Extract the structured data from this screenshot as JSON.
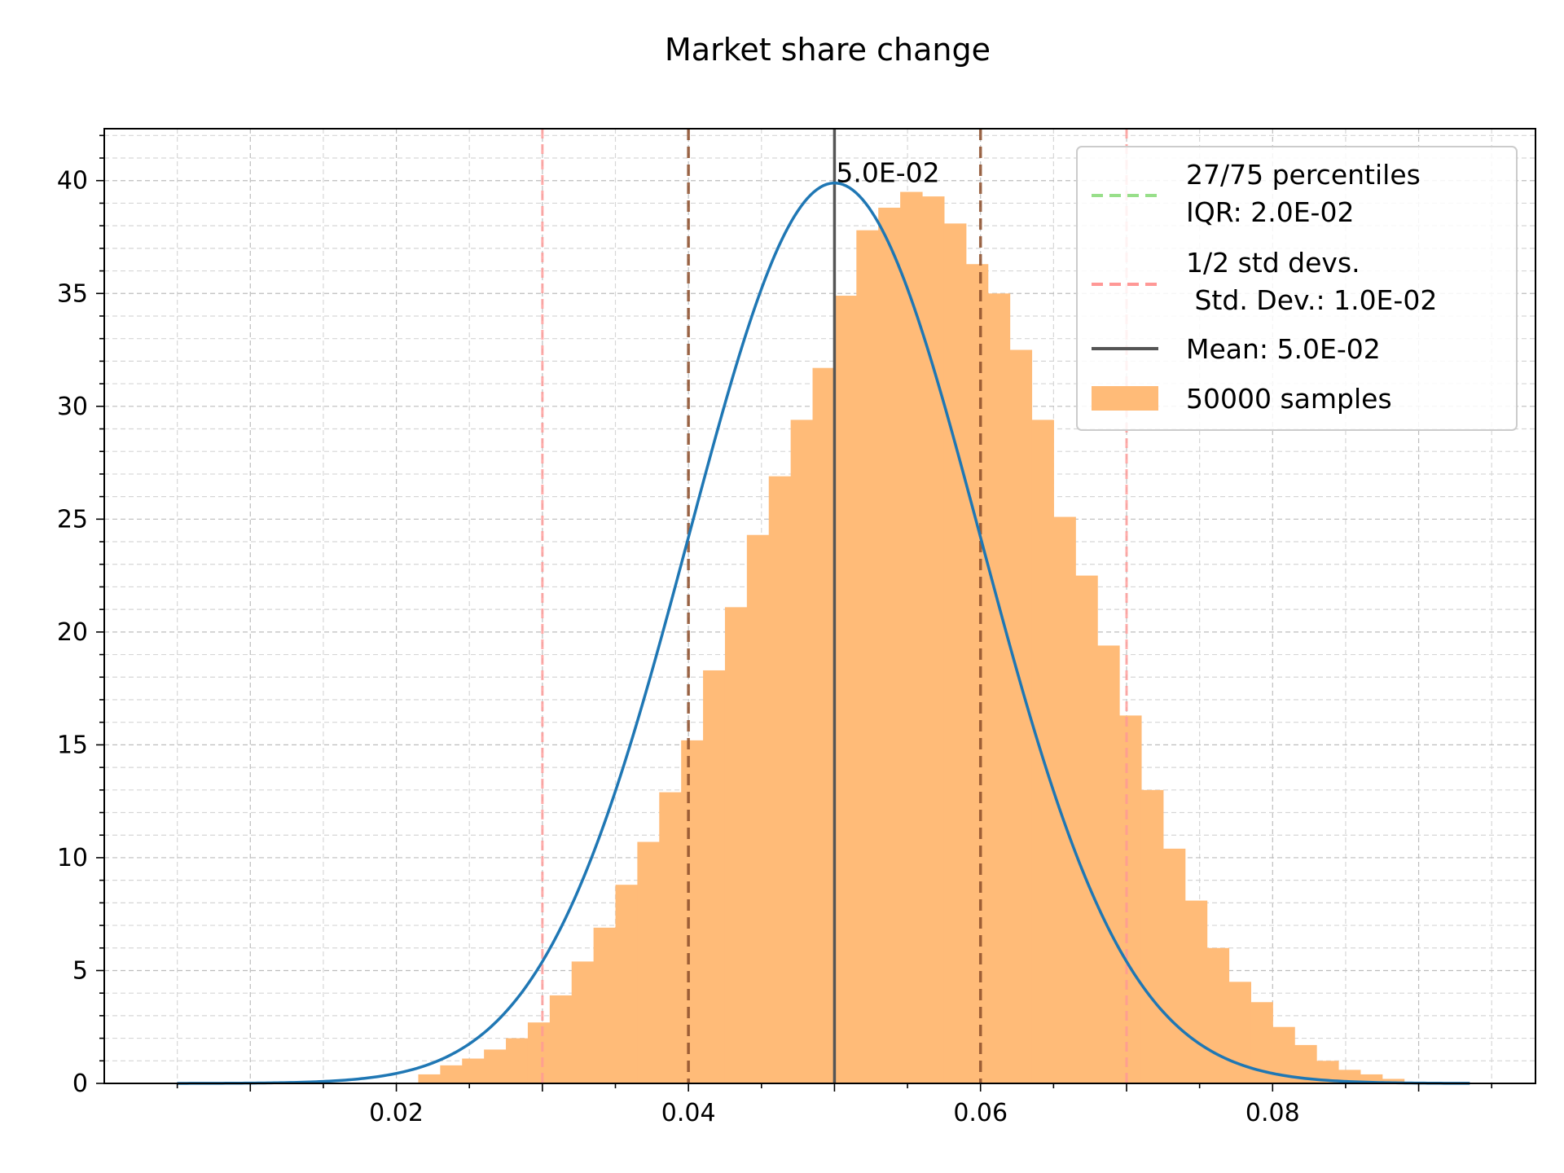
{
  "chart_data": {
    "type": "bar",
    "title": "Market share change",
    "xlabel": "",
    "ylabel": "",
    "xlim": [
      0.0,
      0.098
    ],
    "ylim": [
      0,
      42.3
    ],
    "xticks": [
      0.02,
      0.04,
      0.06,
      0.08
    ],
    "xtick_labels": [
      "0.02",
      "0.04",
      "0.06",
      "0.08"
    ],
    "yticks": [
      0,
      5,
      10,
      15,
      20,
      25,
      30,
      35,
      40
    ],
    "ytick_labels": [
      "0",
      "5",
      "10",
      "15",
      "20",
      "25",
      "30",
      "35",
      "40"
    ],
    "grid": true,
    "legend_position": "upper right",
    "histogram": {
      "name": "50000 samples",
      "color": "#ffbb78",
      "bin_width": 0.0015,
      "bins_start": 0.0215,
      "values": [
        0.4,
        0.8,
        1.1,
        1.5,
        2.0,
        2.7,
        3.9,
        5.4,
        6.9,
        8.8,
        10.7,
        12.9,
        15.2,
        18.3,
        21.1,
        24.3,
        26.9,
        29.4,
        31.7,
        34.9,
        37.8,
        38.8,
        39.5,
        39.3,
        38.1,
        36.3,
        35.0,
        32.5,
        29.4,
        25.1,
        22.5,
        19.4,
        16.3,
        13.0,
        10.4,
        8.1,
        6.0,
        4.5,
        3.6,
        2.5,
        1.7,
        1.0,
        0.6,
        0.4,
        0.2
      ]
    },
    "pdf_curve": {
      "name": "pdf",
      "color": "#1f77b4",
      "mean": 0.05,
      "std": 0.01,
      "x_range": [
        0.005,
        0.0935
      ]
    },
    "mean_line": {
      "x": 0.05,
      "label": "Mean: 5.0E-02",
      "color": "#555555"
    },
    "percentile_lines": {
      "x": [
        0.04,
        0.06
      ],
      "label_line1": "27/75 percentiles",
      "label_line2": "IQR: 2.0E-02",
      "color": "#8c4d2a",
      "legend_color": "#98df8a"
    },
    "std_lines": {
      "x": [
        0.03,
        0.07
      ],
      "label_line1": "1/2 std devs.",
      "label_line2": " Std. Dev.: 1.0E-02",
      "color": "#ff9896"
    },
    "annotation": {
      "text": "5.0E-02",
      "x": 0.05,
      "y": 40.0
    },
    "legend": {
      "percentiles_line1": "27/75 percentiles",
      "percentiles_line2": "IQR: 2.0E-02",
      "std_line1": "1/2 std devs.",
      "std_line2": " Std. Dev.: 1.0E-02",
      "mean": "Mean: 5.0E-02",
      "samples": "50000 samples"
    }
  }
}
